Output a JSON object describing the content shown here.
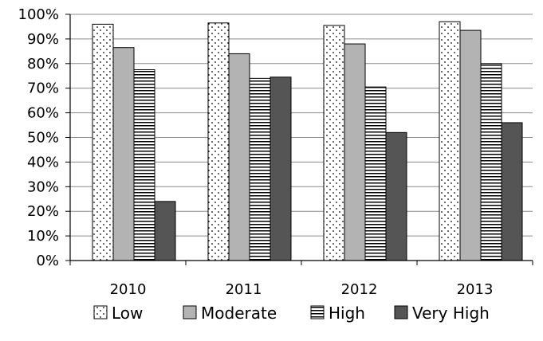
{
  "chart_data": {
    "type": "bar",
    "categories": [
      "2010",
      "2011",
      "2012",
      "2013"
    ],
    "series": [
      {
        "name": "Low",
        "values": [
          96,
          96.5,
          95.5,
          97
        ],
        "pattern": "dots",
        "color": "#ffffff"
      },
      {
        "name": "Moderate",
        "values": [
          86.5,
          84,
          88,
          93.5
        ],
        "pattern": "solid",
        "color": "#b3b3b3"
      },
      {
        "name": "High",
        "values": [
          77.5,
          74,
          70.5,
          80
        ],
        "pattern": "hlines",
        "color": "#ffffff"
      },
      {
        "name": "Very High",
        "values": [
          24,
          74.5,
          52,
          56
        ],
        "pattern": "solid",
        "color": "#555555"
      }
    ],
    "ylim": [
      0,
      100
    ],
    "yticks": [
      "0%",
      "10%",
      "20%",
      "30%",
      "40%",
      "50%",
      "60%",
      "70%",
      "80%",
      "90%",
      "100%"
    ],
    "grid": true,
    "legend": "bottom"
  }
}
